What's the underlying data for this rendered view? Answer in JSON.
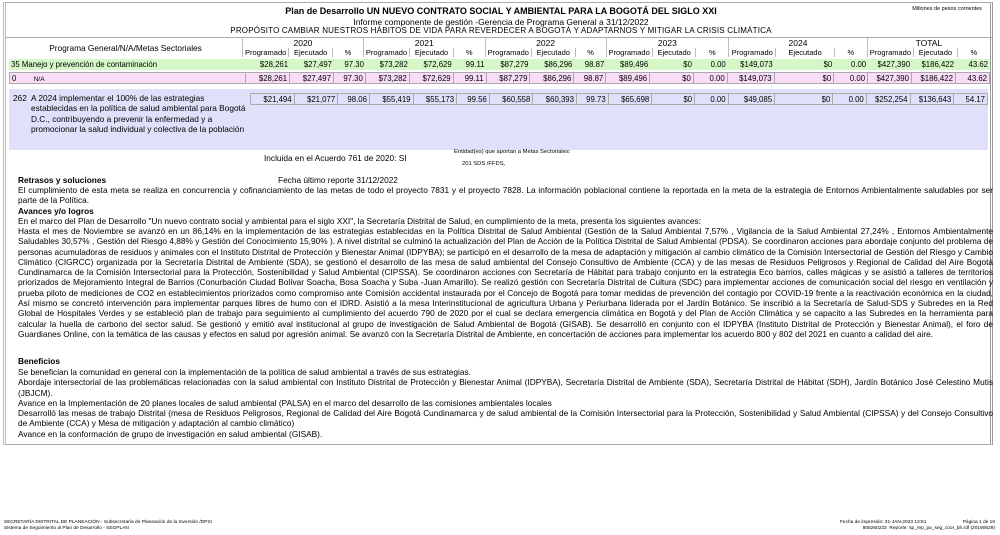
{
  "header": {
    "title": "Plan de Desarrollo UN NUEVO CONTRATO SOCIAL Y AMBIENTAL PARA LA BOGOTÁ DEL SIGLO XXI",
    "subtitle": "Informe componente de gestión -Gerencia de Programa General a 31/12/2022",
    "purpose": "PROPÓSITO CAMBIAR NUESTROS HÁBITOS DE VIDA PARA REVERDECER A BOGOTÁ Y ADAPTARNOS Y MITIGAR LA CRISIS CLIMÁTICA",
    "units": "Millones de pesos corrientes"
  },
  "table": {
    "label_header": "Programa General/N/A/Metas Sectoriales",
    "years": [
      "2020",
      "2021",
      "2022",
      "2023",
      "2024",
      "TOTAL"
    ],
    "subheaders": [
      "Programado",
      "Ejecutado",
      "%"
    ],
    "program_row": {
      "code": "35",
      "label": "Manejo y prevención de contaminación",
      "values": [
        "$28,261",
        "$27,497",
        "97.30",
        "$73,282",
        "$72,629",
        "99.11",
        "$87,279",
        "$86,296",
        "98.87",
        "$89,496",
        "$0",
        "0.00",
        "$149,073",
        "$0",
        "0.00",
        "$427,390",
        "$186,422",
        "43.62"
      ]
    },
    "na_row": {
      "code": "0",
      "label": "N/A",
      "values": [
        "$28,261",
        "$27,497",
        "97.30",
        "$73,282",
        "$72,629",
        "99.11",
        "$87,279",
        "$86,296",
        "98.87",
        "$89,496",
        "$0",
        "0.00",
        "$149,073",
        "$0",
        "0.00",
        "$427,390",
        "$186,422",
        "43.62"
      ]
    },
    "meta_row": {
      "code": "262",
      "label": "A 2024 implementar el 100% de las estrategias establecidas en la política de salud ambiental para Bogotá D.C., contribuyendo a prevenir la enfermedad y a promocionar la salud individual y colectiva de la población",
      "values": [
        "$21,494",
        "$21,077",
        "98.06",
        "$55,419",
        "$55,173",
        "99.56",
        "$60,558",
        "$60,393",
        "99.73",
        "$65,698",
        "$0",
        "0.00",
        "$49,085",
        "$0",
        "0.00",
        "$252,254",
        "$136,643",
        "54.17"
      ]
    }
  },
  "meta_info": {
    "acuerdo": "Incluida en el Acuerdo 761 de 2020: SI",
    "entidades_label": "Entidad(es) que aportan a Metas Sectoriales:",
    "entidades": "201 SDS /FFDS,"
  },
  "retrasos": {
    "heading": "Retrasos y soluciones",
    "fecha": "Fecha último reporte 31/12/2022",
    "text": "El cumplimiento de esta meta se realiza en concurrencia y cofinanciamiento de las metas de todo el proyecto 7831 y el proyecto 7828.  La información poblacional contiene la reportada en la meta de la estrategia de Entornos Ambientalmente saludables por ser parte de la Política."
  },
  "avances": {
    "heading": "Avances y/o logros",
    "intro": "En el marco del Plan de Desarrollo \"Un nuevo contrato social y ambiental para el siglo XXI\", la Secretaría Distrital de Salud, en cumplimiento de la meta, presenta los siguientes avances:",
    "text": "Hasta el mes de Noviembre se avanzó en un 86,14%  en la implementación de las estrategias establecidas en la Política Distrital de Salud Ambiental (Gestión de la Salud Ambiental 7,57% ,  Vigilancia de la Salud Ambiental 27,24% , Entornos Ambientalmente Saludables 30,57% ,  Gestión del Riesgo 4,88% y Gestión del Conocimiento  15,90% ). A nivel distrital se culminó la actualización del Plan de Acción de la Política Distrital de Salud Ambiental (PDSA). Se coordinaron acciones para abordaje conjunto del problema de personas acumuladoras de residuos y animales con el Instituto Distrital de Protección y Bienestar Animal (IDPYBA); se participó en el desarrollo de la mesa de adaptación y mitigación al cambio climático de la Comisión Intersectorial de Gestión del Riesgo y Cambio Climático (CIGRCC) organizada por la Secretaría Distrital de Ambiente (SDA), se gestionó el desarrollo de las mesa de salud ambiental del Consejo Consultivo de Ambiente (CCA) y de las mesas de Residuos Peligrosos y Regional de Calidad del Aire Bogotá Cundinamarca de la Comisión Intersectorial para la Protección, Sostenibilidad y Salud Ambiental (CIPSSA). Se coordinaron acciones con Secretaría de Hábitat para trabajo conjunto en la estrategia Eco barrios, calles mágicas y se asistió a talleres de territorios priorizados de Mejoramiento Integral de Barrios (Conurbación Ciudad Bolívar Soacha, Bosa Soacha y Suba -Juan Amarillo). Se realizó gestión con Secretaría Distrital de Cultura (SDC) para implementar acciones de comunicación social del riesgo en ventilación y prueba piloto de mediciones de CO2 en establecimientos priorizados como compromiso ante Comisión accidental instaurada por el Concejo de Bogotá para tomar medidas de prevención del contagio por COVID-19 frente a la reactivación económica en la ciudad, Así mismo se concretó intervención para implementar parques libres de humo con el IDRD. Asistió a la mesa Interinstitucional de agricultura Urbana y Periurbana liderada por el Jardín Botánico.  Se inscribió a la Secretaría de Salud-SDS y Subredes en la Red Global de Hospitales Verdes y se estableció plan de trabajo para seguimiento al cumplimiento del acuerdo 790 de 2020 por el cual se declara emergencia climática en Bogotá y del Plan de Acción Climática y se capacito a las Subredes en la herramienta para calcular la huella de carbono del sector salud. Se gestionó y emitió aval institucional al grupo de investigación de Salud Ambiental de Bogotá (GISAB). Se desarrolló en conjunto con el IDPYBA (Instituto Distrital de Protección y Bienestar Animal), el foro de Guardianes Online, con la temática de las causas y efectos en salud por agresión animal. Se avanzó con la Secretaría Distrital de Ambiente, en concertación de acciones para implementar los acuerdo 800 y 802 del 2021 en cuanto a calidad del aire."
  },
  "beneficios": {
    "heading": "Beneficios",
    "items": [
      "Se benefician la comunidad en general con la implementación de la política de salud ambiental a través de sus estrategias.",
      "Abordaje intersectorial de las problemáticas relacionadas con la salud ambiental con Instituto Distrital de Protección y Bienestar Animal (IDPYBA), Secretaría Distrital de Ambiente (SDA), Secretaría Distrital de Hábitat (SDH), Jardín Botánico José Celestino Mutis (JBJCM).",
      "Avance en la Implementación de 20 planes locales de salud ambiental (PALSA) en el marco del desarrollo de las comisiones ambientales locales",
      "Desarrolló las mesas de trabajo Distrital (mesa de Residuos Peligrosos, Regional de Calidad del Aire Bogotá Cundinamarca y de salud ambiental de la Comisión Intersectorial para la Protección, Sostenibilidad y Salud Ambiental (CIPSSA) y del Consejo Consultivo de Ambiente (CCA) y Mesa de mitigación y adaptación al cambio climático)",
      "Avance en la conformación de grupo de investigación en salud ambiental (GISAB)."
    ]
  },
  "footer": {
    "left1": "SECRETARÍA DISTRITAL DE PLANEACIÓN - Subsecretaría de Planeación de la Inversión /DPSI",
    "left2": "Sistema de Seguimiento al Plan de Desarrollo - SEGPLAN",
    "print_date": "Fecha de impresión:  31-JAN-2023 13:51",
    "page": "Página  1 de 16",
    "code": "808260233",
    "report": "Reporte: sp_rep_pa_seg_coor_bh.rdf (20190629)"
  },
  "colors": {
    "program_row": "#d6f8c8",
    "na_row": "#f8dcf8",
    "meta_row": "#e0e0fa"
  }
}
